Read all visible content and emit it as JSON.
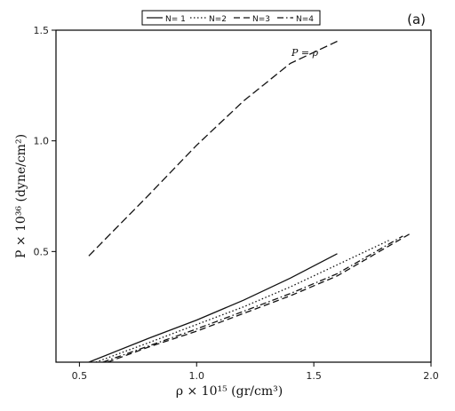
{
  "panel_label": "(a)",
  "chart_data": {
    "type": "line",
    "xlabel": "ρ × 10¹⁵ (gr/cm³)",
    "ylabel": "P × 10³⁶ (dyne/cm²)",
    "xlim": [
      0.4,
      2.0
    ],
    "ylim": [
      0.0,
      1.5
    ],
    "xticks": [
      "0.5",
      "1.0",
      "1.5",
      "2.0"
    ],
    "yticks": [
      "0.5",
      "1.0",
      "1.5"
    ],
    "grid": false,
    "legend_position": "top-center",
    "annotation": "P = ρ",
    "series": [
      {
        "name": "N= 1",
        "dash": "solid",
        "x": [
          0.54,
          0.8,
          1.0,
          1.2,
          1.4,
          1.6
        ],
        "y": [
          0.0,
          0.11,
          0.19,
          0.28,
          0.38,
          0.49
        ]
      },
      {
        "name": "N=2",
        "dash": "dotted",
        "x": [
          0.57,
          0.8,
          1.0,
          1.2,
          1.4,
          1.6,
          1.82
        ],
        "y": [
          0.0,
          0.09,
          0.17,
          0.25,
          0.34,
          0.44,
          0.55
        ]
      },
      {
        "name": "N=3",
        "dash": "dashed",
        "x": [
          0.62,
          0.8,
          1.0,
          1.2,
          1.4,
          1.6,
          1.91
        ],
        "y": [
          0.0,
          0.07,
          0.14,
          0.22,
          0.3,
          0.39,
          0.58
        ]
      },
      {
        "name": "N=4",
        "dash": "dashdot",
        "x": [
          0.6,
          0.8,
          1.0,
          1.2,
          1.4,
          1.6,
          1.88
        ],
        "y": [
          0.0,
          0.075,
          0.15,
          0.23,
          0.31,
          0.4,
          0.57
        ]
      },
      {
        "name": "P = ρ",
        "dash": "longdash",
        "x": [
          0.54,
          0.8,
          1.0,
          1.2,
          1.4,
          1.6
        ],
        "y": [
          0.48,
          0.76,
          0.98,
          1.18,
          1.35,
          1.45
        ]
      }
    ]
  }
}
